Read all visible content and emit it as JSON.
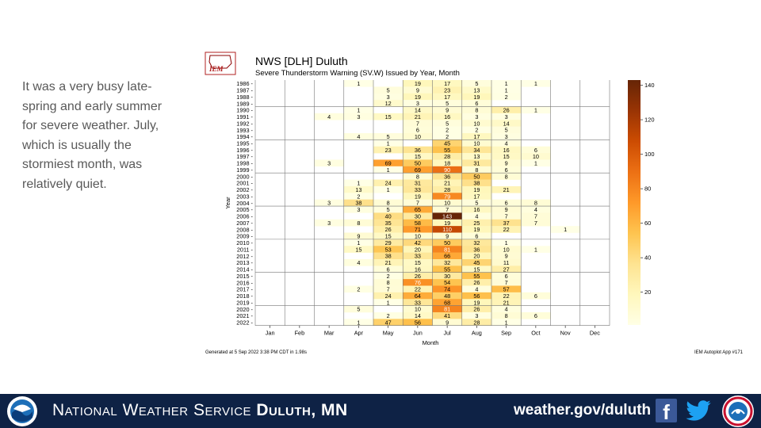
{
  "intro_text": "It was a very busy late-spring and early summer for severe weather. July, which is usually the stormiest month, was relatively quiet.",
  "footer": {
    "org_prefix": "National Weather Service",
    "org_office": "Duluth, MN",
    "url": "weather.gov/duluth",
    "facebook_glyph": "f"
  },
  "icons": [
    "noaa-logo",
    "facebook-icon",
    "twitter-icon",
    "nws-logo",
    "iem-logo"
  ],
  "logo_text": "IEM",
  "chart_data": {
    "type": "heatmap",
    "title": "NWS [DLH] Duluth",
    "subtitle": "Severe Thunderstorm Warning (SV.W) Issued by Year, Month",
    "xlabel": "Month",
    "ylabel": "Year",
    "months": [
      "Jan",
      "Feb",
      "Mar",
      "Apr",
      "May",
      "Jun",
      "Jul",
      "Aug",
      "Sep",
      "Oct",
      "Nov",
      "Dec"
    ],
    "years": [
      1986,
      1987,
      1988,
      1989,
      1990,
      1991,
      1992,
      1993,
      1994,
      1995,
      1996,
      1997,
      1998,
      1999,
      2000,
      2001,
      2002,
      2003,
      2004,
      2005,
      2006,
      2007,
      2008,
      2009,
      2010,
      2011,
      2012,
      2013,
      2014,
      2015,
      2016,
      2017,
      2018,
      2019,
      2020,
      2021,
      2022
    ],
    "values": [
      [
        null,
        null,
        null,
        1,
        null,
        19,
        17,
        5,
        1,
        1,
        null,
        null
      ],
      [
        null,
        null,
        null,
        null,
        5,
        9,
        23,
        13,
        1,
        null,
        null,
        null
      ],
      [
        null,
        null,
        null,
        null,
        3,
        19,
        17,
        19,
        2,
        null,
        null,
        null
      ],
      [
        null,
        null,
        null,
        null,
        12,
        3,
        5,
        6,
        null,
        null,
        null,
        null
      ],
      [
        null,
        null,
        null,
        1,
        null,
        14,
        9,
        8,
        26,
        1,
        null,
        null
      ],
      [
        null,
        null,
        4,
        3,
        15,
        21,
        16,
        3,
        3,
        null,
        null,
        null
      ],
      [
        null,
        null,
        null,
        null,
        null,
        7,
        5,
        10,
        14,
        null,
        null,
        null
      ],
      [
        null,
        null,
        null,
        null,
        null,
        6,
        2,
        2,
        5,
        null,
        null,
        null
      ],
      [
        null,
        null,
        null,
        4,
        5,
        10,
        2,
        17,
        3,
        null,
        null,
        null
      ],
      [
        null,
        null,
        null,
        null,
        1,
        null,
        45,
        10,
        4,
        null,
        null,
        null
      ],
      [
        null,
        null,
        null,
        null,
        23,
        36,
        55,
        34,
        16,
        6,
        null,
        null
      ],
      [
        null,
        null,
        null,
        null,
        null,
        15,
        28,
        13,
        15,
        10,
        null,
        null
      ],
      [
        null,
        null,
        3,
        null,
        69,
        50,
        18,
        31,
        9,
        1,
        null,
        null
      ],
      [
        null,
        null,
        null,
        null,
        1,
        69,
        90,
        8,
        6,
        null,
        null,
        null
      ],
      [
        null,
        null,
        null,
        null,
        null,
        8,
        36,
        50,
        8,
        null,
        null,
        null
      ],
      [
        null,
        null,
        null,
        1,
        24,
        31,
        21,
        38,
        null,
        null,
        null,
        null
      ],
      [
        null,
        null,
        null,
        13,
        1,
        33,
        28,
        19,
        21,
        null,
        null,
        null
      ],
      [
        null,
        null,
        null,
        2,
        null,
        19,
        79,
        17,
        null,
        null,
        null,
        null
      ],
      [
        null,
        null,
        3,
        38,
        8,
        7,
        10,
        5,
        6,
        8,
        null,
        null
      ],
      [
        null,
        null,
        null,
        3,
        5,
        65,
        7,
        16,
        9,
        4,
        null,
        null
      ],
      [
        null,
        null,
        null,
        null,
        40,
        30,
        143,
        4,
        7,
        7,
        null,
        null
      ],
      [
        null,
        null,
        3,
        8,
        35,
        58,
        19,
        25,
        37,
        7,
        null,
        null
      ],
      [
        null,
        null,
        null,
        null,
        26,
        71,
        110,
        19,
        22,
        null,
        1,
        null
      ],
      [
        null,
        null,
        null,
        9,
        15,
        10,
        9,
        6,
        null,
        null,
        null,
        null
      ],
      [
        null,
        null,
        null,
        1,
        29,
        42,
        50,
        32,
        1,
        null,
        null,
        null
      ],
      [
        null,
        null,
        null,
        15,
        53,
        20,
        81,
        36,
        10,
        1,
        null,
        null
      ],
      [
        null,
        null,
        null,
        null,
        38,
        33,
        66,
        20,
        9,
        null,
        null,
        null
      ],
      [
        null,
        null,
        null,
        4,
        21,
        15,
        32,
        45,
        11,
        null,
        null,
        null
      ],
      [
        null,
        null,
        null,
        null,
        6,
        16,
        55,
        15,
        27,
        null,
        null,
        null
      ],
      [
        null,
        null,
        null,
        null,
        2,
        26,
        30,
        55,
        6,
        null,
        null,
        null
      ],
      [
        null,
        null,
        null,
        null,
        8,
        76,
        54,
        26,
        7,
        null,
        null,
        null
      ],
      [
        null,
        null,
        null,
        2,
        7,
        22,
        74,
        4,
        57,
        null,
        null,
        null
      ],
      [
        null,
        null,
        null,
        null,
        24,
        64,
        48,
        56,
        22,
        6,
        null,
        null
      ],
      [
        null,
        null,
        null,
        null,
        1,
        33,
        68,
        19,
        21,
        null,
        null,
        null
      ],
      [
        null,
        null,
        null,
        5,
        null,
        10,
        81,
        26,
        4,
        null,
        null,
        null
      ],
      [
        null,
        null,
        null,
        null,
        2,
        14,
        41,
        3,
        8,
        6,
        null,
        null
      ],
      [
        null,
        null,
        null,
        1,
        47,
        56,
        9,
        28,
        1,
        null,
        null,
        null
      ]
    ],
    "colorbar_ticks": [
      20,
      40,
      60,
      80,
      100,
      120,
      140
    ],
    "colorbar_range": [
      1,
      143
    ],
    "colormap": "YlOrBr",
    "generated_text": "Generated at 5 Sep 2022 3:38 PM CDT in 1.98s",
    "app_text": "IEM Autoplot App #171"
  }
}
